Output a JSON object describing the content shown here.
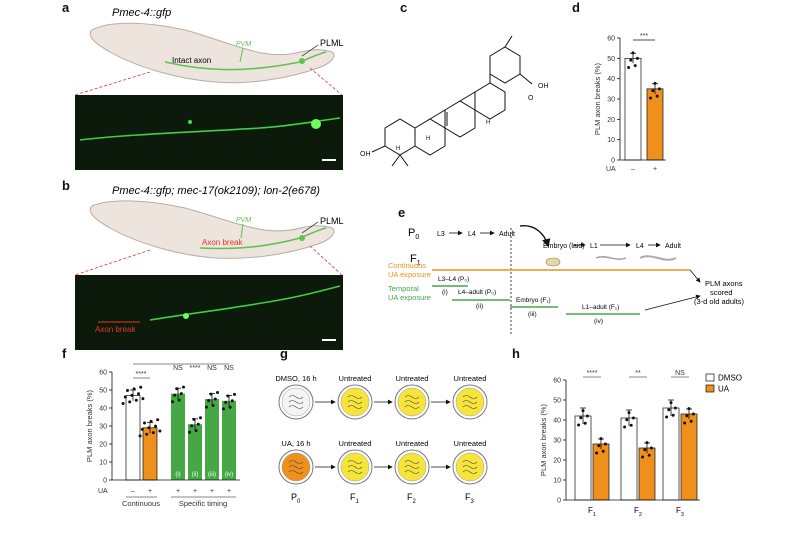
{
  "colors": {
    "gfp_green": "#5fc34a",
    "ua_orange": "#f0901c",
    "timing_green": "#45a845",
    "worm_body": "#ede4de",
    "dish_yellow": "#f7e43a",
    "axon_break_red": "#e8342a"
  },
  "panel_a": {
    "label": "a",
    "genotype": "Pmec-4::gfp",
    "neuron_label_plm": "PVM",
    "neuron_label_plml": "PLML",
    "axon_label": "Intact axon"
  },
  "panel_b": {
    "label": "b",
    "genotype": "Pmec-4::gfp; mec-17(ok2109); lon-2(e678)",
    "neuron_label_plm": "PVM",
    "neuron_label_plml": "PLML",
    "axon_label": "Axon break",
    "micrograph_label": "Axon break"
  },
  "panel_c": {
    "label": "c",
    "oh_label": "OH",
    "h_label": "H",
    "acid_label": "OH",
    "o_label": "O"
  },
  "panel_d": {
    "label": "d",
    "ylabel": "PLM axon breaks (%)",
    "yticks": [
      "0",
      "10",
      "20",
      "30",
      "40",
      "50",
      "60"
    ],
    "xlabel": "UA",
    "x_categories": [
      "–",
      "+"
    ],
    "significance": "***"
  },
  "panel_e": {
    "label": "e",
    "gen_p0": "P",
    "gen_p0_sub": "0",
    "gen_f1": "F",
    "gen_f1_sub": "1",
    "p0_stages": [
      "L3",
      "L4",
      "Adult"
    ],
    "f1_stages": [
      "Embryo (laid)",
      "L1",
      "L4",
      "Adult"
    ],
    "continuous_label_1": "Continuous",
    "continuous_label_2": "UA exposure",
    "temporal_label_1": "Temporal",
    "temporal_label_2": "UA exposure",
    "windows": [
      {
        "label": "L3–L4 (P₀)",
        "num": "(i)"
      },
      {
        "label": "L4–adult (P₀)",
        "num": "(ii)"
      },
      {
        "label": "Embryo (F₁)",
        "num": "(iii)"
      },
      {
        "label": "L1–adult (F₁)",
        "num": "(iv)"
      }
    ],
    "outcome_1": "PLM axons",
    "outcome_2": "scored",
    "outcome_3": "(3-d old adults)"
  },
  "panel_f": {
    "label": "f",
    "ylabel": "PLM axon breaks (%)",
    "yticks": [
      "0",
      "10",
      "20",
      "30",
      "40",
      "50",
      "60"
    ],
    "bar_numerals": [
      "(i)",
      "(ii)",
      "(iii)",
      "(iv)"
    ],
    "ua_row_label": "UA",
    "ua_signs": [
      "–",
      "+",
      "+",
      "+",
      "+",
      "+"
    ],
    "group_continuous": "Continuous",
    "group_specific": "Specific timing",
    "sig_main": "****",
    "sig_ns1": "NS",
    "sig_mid": "****",
    "sig_ns2": "NS",
    "sig_ns3": "NS"
  },
  "panel_g": {
    "label": "g",
    "row1_first": "DMSO, 16 h",
    "row2_first": "UA, 16 h",
    "untreated": "Untreated",
    "gens": [
      {
        "g": "P",
        "s": "0"
      },
      {
        "g": "F",
        "s": "1"
      },
      {
        "g": "F",
        "s": "2"
      },
      {
        "g": "F",
        "s": "3"
      }
    ]
  },
  "panel_h": {
    "label": "h",
    "ylabel": "PLM axon breaks (%)",
    "yticks": [
      "0",
      "10",
      "20",
      "30",
      "40",
      "50",
      "60"
    ],
    "legend": [
      "DMSO",
      "UA"
    ],
    "gens": [
      {
        "g": "F",
        "s": "1"
      },
      {
        "g": "F",
        "s": "2"
      },
      {
        "g": "F",
        "s": "3"
      }
    ],
    "significance": [
      "****",
      "**",
      "NS"
    ]
  },
  "chart_data": [
    {
      "type": "bar",
      "panel": "d",
      "categories": [
        "–",
        "+"
      ],
      "values": [
        50,
        35
      ],
      "ylabel": "PLM axon breaks (%)",
      "ylim": [
        0,
        60
      ]
    },
    {
      "type": "bar",
      "panel": "f",
      "categories": [
        "Continuous –",
        "Continuous +",
        "(i)",
        "(ii)",
        "(iii)",
        "(iv)"
      ],
      "values": [
        47,
        29,
        48,
        31,
        45,
        44
      ],
      "ylabel": "PLM axon breaks (%)",
      "ylim": [
        0,
        60
      ]
    },
    {
      "type": "bar",
      "panel": "h",
      "categories": [
        "F1",
        "F2",
        "F3"
      ],
      "series": [
        {
          "name": "DMSO",
          "values": [
            42,
            41,
            46
          ]
        },
        {
          "name": "UA",
          "values": [
            28,
            26,
            43
          ]
        }
      ],
      "ylabel": "PLM axon breaks (%)",
      "ylim": [
        0,
        60
      ]
    }
  ]
}
